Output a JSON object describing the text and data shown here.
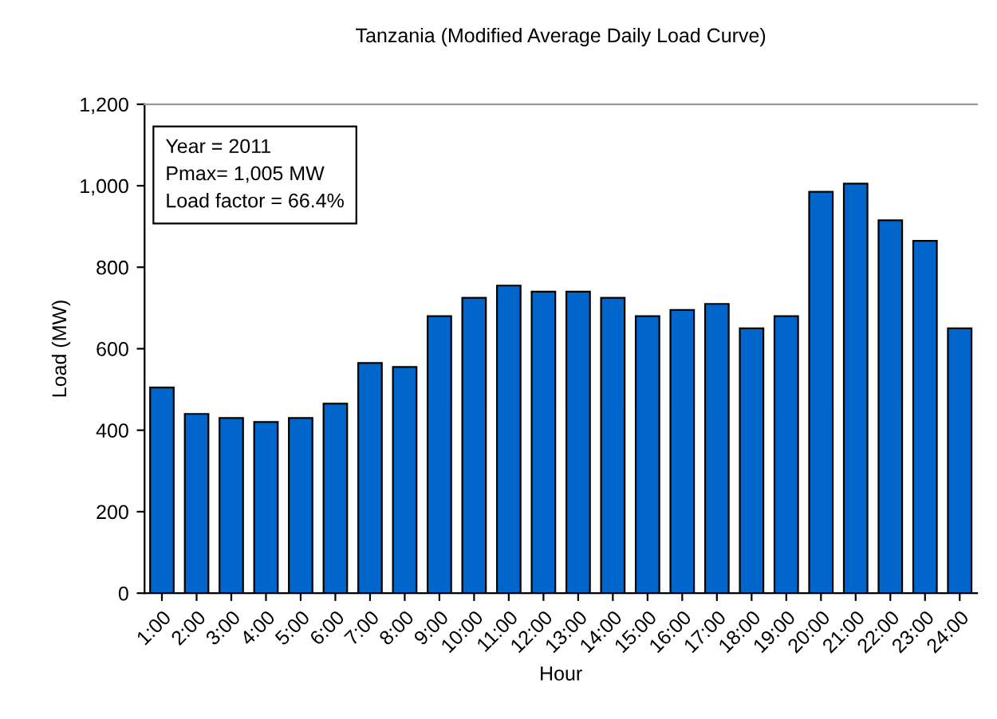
{
  "chart_data": {
    "type": "bar",
    "title": "Tanzania (Modified Average Daily Load Curve)",
    "xlabel": "Hour",
    "ylabel": "Load (MW)",
    "categories": [
      "1:00",
      "2:00",
      "3:00",
      "4:00",
      "5:00",
      "6:00",
      "7:00",
      "8:00",
      "9:00",
      "10:00",
      "11:00",
      "12:00",
      "13:00",
      "14:00",
      "15:00",
      "16:00",
      "17:00",
      "18:00",
      "19:00",
      "20:00",
      "21:00",
      "22:00",
      "23:00",
      "24:00"
    ],
    "values": [
      505,
      440,
      430,
      420,
      430,
      465,
      565,
      555,
      680,
      725,
      755,
      740,
      740,
      725,
      680,
      695,
      710,
      650,
      680,
      985,
      1005,
      915,
      865,
      650
    ],
    "color": "#0066cc",
    "ylim": [
      0,
      1200
    ],
    "yticks": [
      0,
      {
        "value": 200,
        "label": "200"
      },
      {
        "value": 400,
        "label": "400"
      },
      {
        "value": 600,
        "label": "600"
      },
      {
        "value": 800,
        "label": "800"
      },
      {
        "value": 1000,
        "label": "1,000"
      },
      {
        "value": 1200,
        "label": "1,200"
      }
    ],
    "grid": false,
    "legend": false,
    "annotations": [
      "Year = 2011\nPmax= 1,005 MW\nLoad factor = 66.4%"
    ]
  }
}
